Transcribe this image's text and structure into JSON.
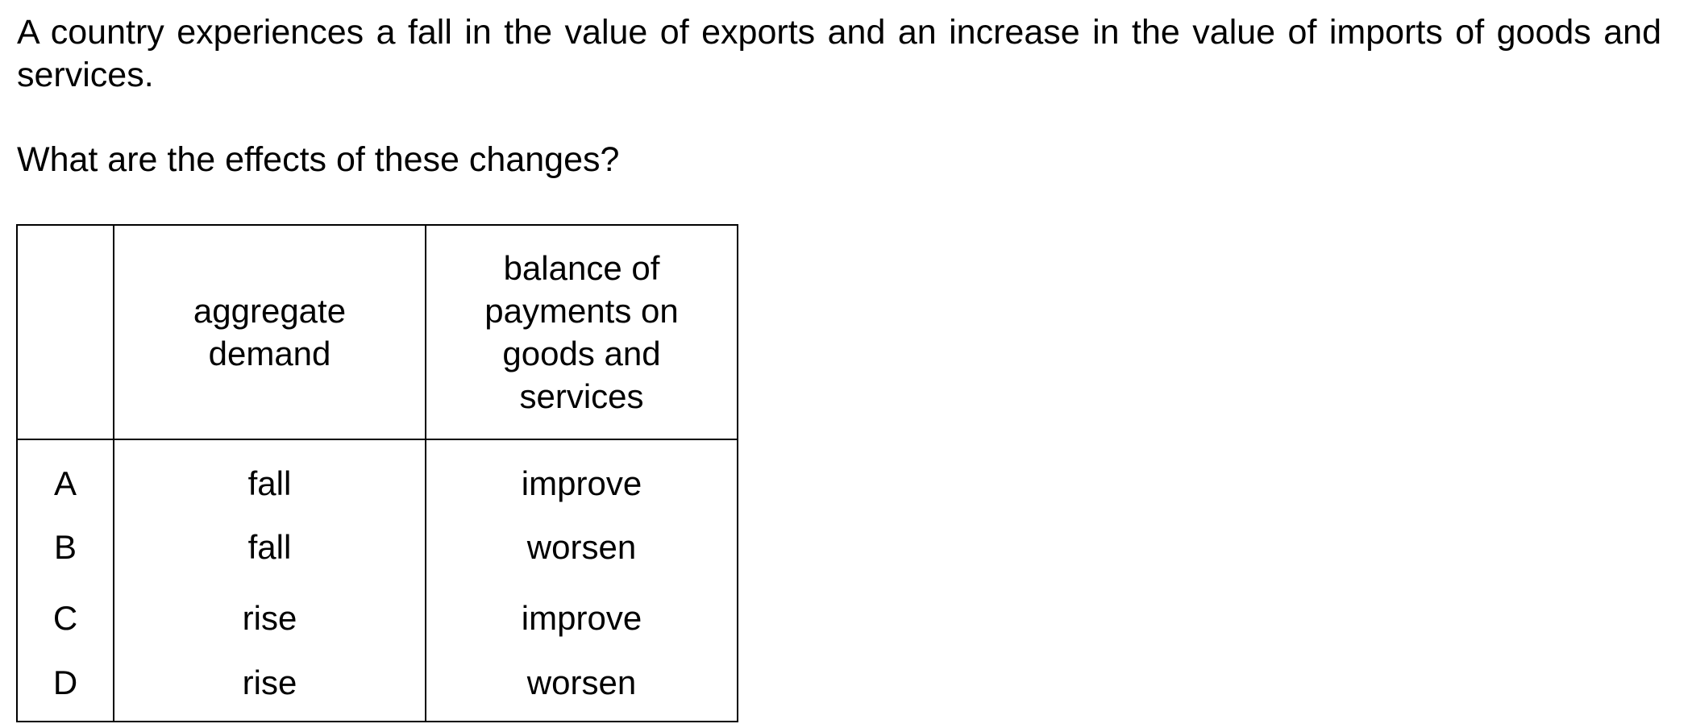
{
  "question": {
    "stem": "A country experiences a fall in the value of exports and an increase in the value of imports of goods and services.",
    "prompt": "What are the effects of these changes?"
  },
  "table": {
    "headers": {
      "key": "",
      "aggregate_demand": "aggregate demand",
      "balance_of_payments": "balance of payments on goods and services"
    },
    "rows": [
      {
        "key": "A",
        "aggregate_demand": "fall",
        "balance_of_payments": "improve"
      },
      {
        "key": "B",
        "aggregate_demand": "fall",
        "balance_of_payments": "worsen"
      },
      {
        "key": "C",
        "aggregate_demand": "rise",
        "balance_of_payments": "improve"
      },
      {
        "key": "D",
        "aggregate_demand": "rise",
        "balance_of_payments": "worsen"
      }
    ]
  }
}
